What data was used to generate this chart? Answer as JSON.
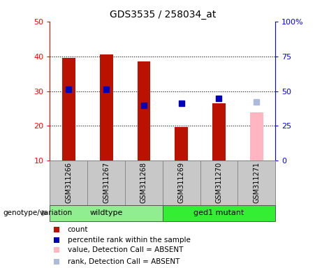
{
  "title": "GDS3535 / 258034_at",
  "samples": [
    "GSM311266",
    "GSM311267",
    "GSM311268",
    "GSM311269",
    "GSM311270",
    "GSM311271"
  ],
  "count_values": [
    39.5,
    40.5,
    38.5,
    19.7,
    26.5,
    null
  ],
  "rank_values": [
    30.5,
    30.5,
    26.0,
    26.5,
    28.0,
    null
  ],
  "absent_count": [
    null,
    null,
    null,
    null,
    null,
    24.0
  ],
  "absent_rank": [
    null,
    null,
    null,
    null,
    null,
    27.0
  ],
  "ylim_left": [
    10,
    50
  ],
  "yticks_left": [
    10,
    20,
    30,
    40,
    50
  ],
  "ylim_right": [
    0,
    100
  ],
  "yticks_right": [
    0,
    25,
    50,
    75,
    100
  ],
  "grid_values": [
    20,
    30,
    40
  ],
  "bar_color": "#BB1100",
  "rank_color": "#0000BB",
  "absent_bar_color": "#FFB6C1",
  "absent_rank_color": "#AABBDD",
  "wildtype_color": "#90EE90",
  "mutant_color": "#33EE33",
  "sample_box_color": "#C8C8C8",
  "legend_items": [
    {
      "label": "count",
      "color": "#BB1100"
    },
    {
      "label": "percentile rank within the sample",
      "color": "#0000BB"
    },
    {
      "label": "value, Detection Call = ABSENT",
      "color": "#FFB6C1"
    },
    {
      "label": "rank, Detection Call = ABSENT",
      "color": "#AABBDD"
    }
  ],
  "bar_width": 0.35,
  "rank_marker_size": 6
}
